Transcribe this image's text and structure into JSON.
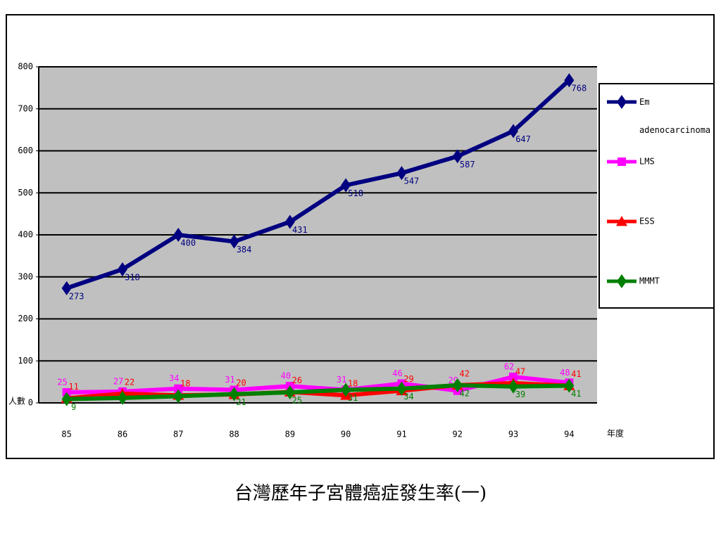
{
  "chart_data": {
    "type": "line",
    "title": "台灣歷年子宮體癌症發生率(一)",
    "x_label": "年度",
    "y_label": "人數",
    "categories": [
      "85",
      "86",
      "87",
      "88",
      "89",
      "90",
      "91",
      "92",
      "93",
      "94"
    ],
    "ylim": [
      0,
      800
    ],
    "yticks": [
      0,
      100,
      200,
      300,
      400,
      500,
      600,
      700,
      800
    ],
    "grid": true,
    "legend": "right",
    "series": [
      {
        "name": "Em adenocarcinoma",
        "color": "#000080",
        "marker": "diamond",
        "values": [
          273,
          318,
          400,
          384,
          431,
          518,
          547,
          587,
          647,
          768
        ],
        "value_labels": [
          "273",
          "318",
          "400",
          "384",
          "431",
          "518",
          "547",
          "587",
          "647",
          "768"
        ]
      },
      {
        "name": "LMS",
        "color": "#ff00ff",
        "marker": "square",
        "values": [
          25,
          27,
          34,
          31,
          40,
          31,
          46,
          29,
          62,
          48
        ],
        "value_labels": [
          "25",
          "27",
          "34",
          "31",
          "40",
          "31",
          "46",
          "29",
          "62",
          "48"
        ]
      },
      {
        "name": "ESS",
        "color": "#ff0000",
        "marker": "triangle",
        "values": [
          11,
          22,
          18,
          20,
          26,
          18,
          29,
          42,
          47,
          41
        ],
        "value_labels": [
          "11",
          "22",
          "18",
          "20",
          "26",
          "18",
          "29",
          "42",
          "47",
          "41"
        ]
      },
      {
        "name": "MMMT",
        "color": "#008000",
        "marker": "diamond",
        "values": [
          9,
          12,
          16,
          21,
          25,
          31,
          34,
          42,
          39,
          41
        ],
        "value_labels": [
          "9",
          null,
          null,
          "21",
          "25",
          "31",
          "34",
          "42",
          "39",
          "41"
        ]
      }
    ]
  }
}
